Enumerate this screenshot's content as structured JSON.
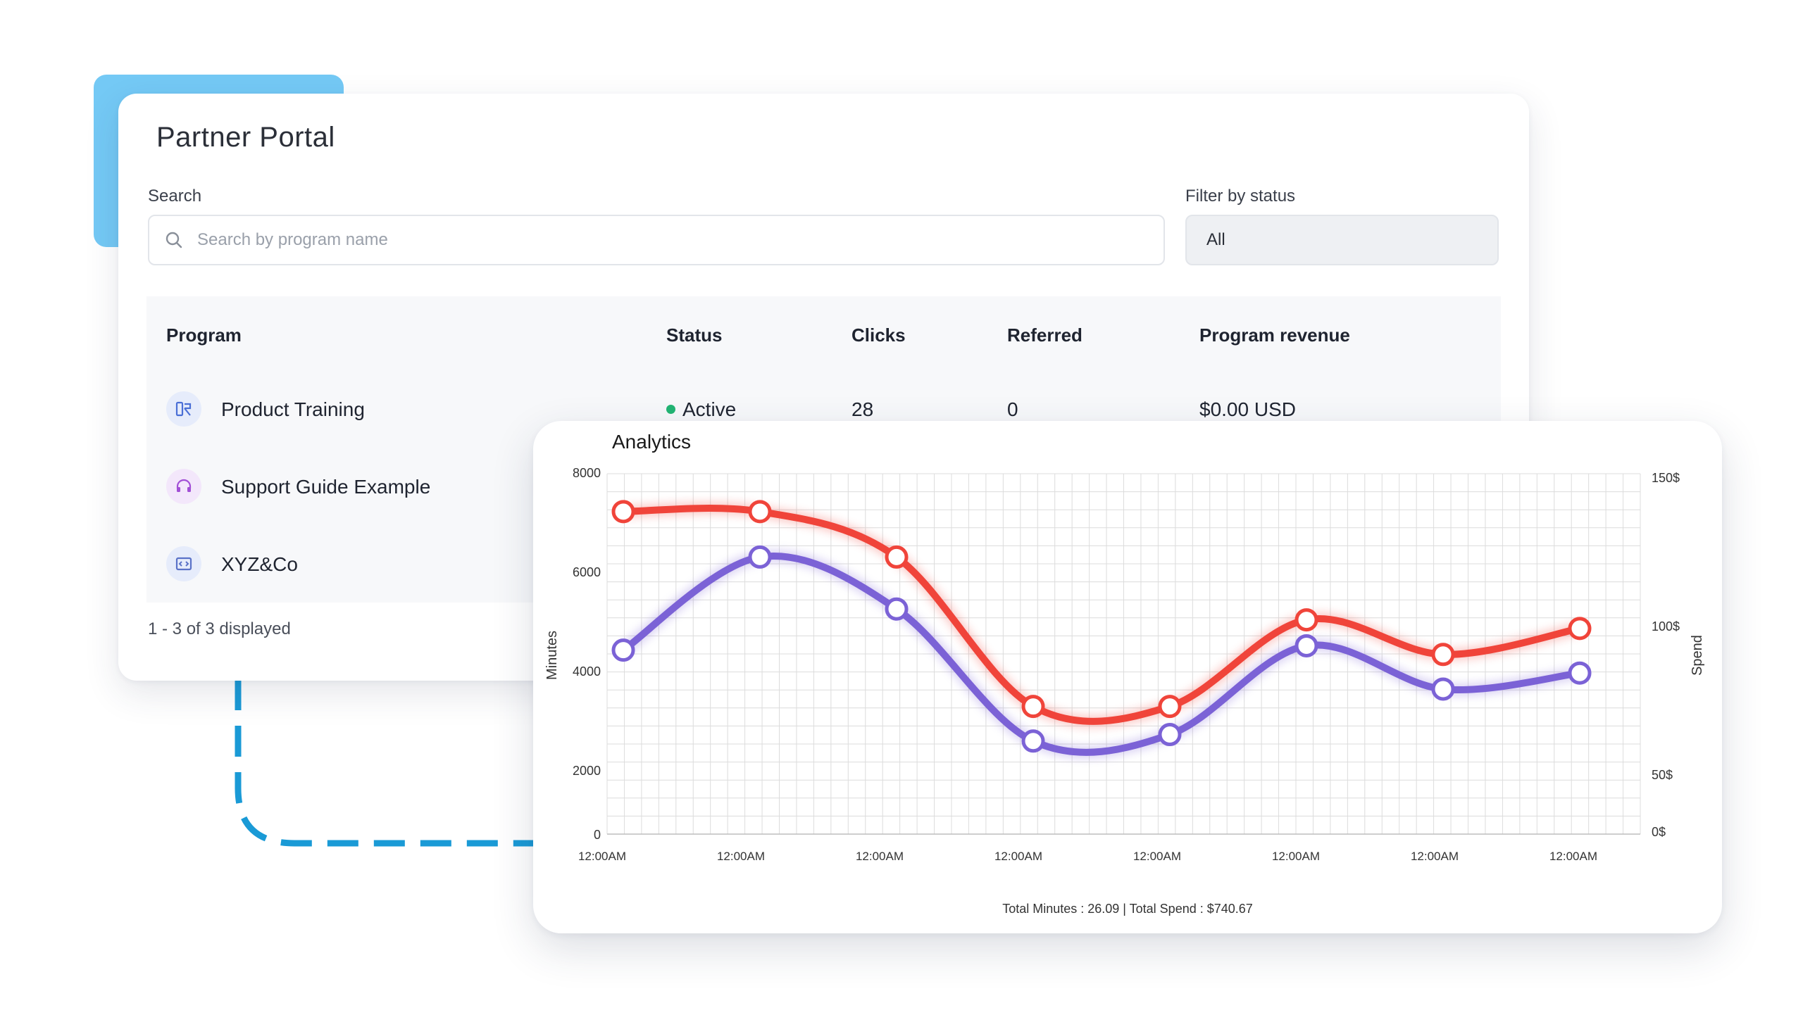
{
  "portal": {
    "title": "Partner Portal",
    "search_label": "Search",
    "search_placeholder": "Search by program name",
    "filter_label": "Filter by status",
    "filter_value": "All",
    "columns": [
      "Program",
      "Status",
      "Clicks",
      "Referred",
      "Program revenue"
    ],
    "rows": [
      {
        "name": "Product Training",
        "icon": "training-icon",
        "status": "Active",
        "clicks": "28",
        "referred": "0",
        "revenue": "$0.00 USD"
      },
      {
        "name": "Support Guide Example",
        "icon": "headset-icon"
      },
      {
        "name": "XYZ&Co",
        "icon": "code-window-icon"
      }
    ],
    "pager": "1 - 3 of 3 displayed",
    "colors": {
      "accent": "#74c9f5",
      "status_active": "#22b573",
      "connector": "#1a9ad6"
    }
  },
  "analytics": {
    "title": "Analytics",
    "footer": "Total Minutes : 26.09 | Total Spend : $740.67"
  },
  "chart_data": {
    "type": "line",
    "x": [
      "12:00AM",
      "12:00AM",
      "12:00AM",
      "12:00AM",
      "12:00AM",
      "12:00AM",
      "12:00AM",
      "12:00AM"
    ],
    "ylabel": "Minutes",
    "y2label": "Spend",
    "y_ticks": [
      "8000",
      "6000",
      "4000",
      "2000",
      "0"
    ],
    "y2_ticks": [
      "150$",
      "100$",
      "50$",
      "0$"
    ],
    "ylim": [
      0,
      8000
    ],
    "y2lim": [
      0,
      150
    ],
    "grid": true,
    "series": [
      {
        "color": "#f0443a",
        "values": [
          7450,
          7450,
          6400,
          2950,
          2950,
          4950,
          4150,
          4750
        ]
      },
      {
        "color": "#7b62d6",
        "values": [
          4250,
          6400,
          5200,
          2150,
          2300,
          4350,
          3350,
          3720
        ]
      }
    ]
  }
}
